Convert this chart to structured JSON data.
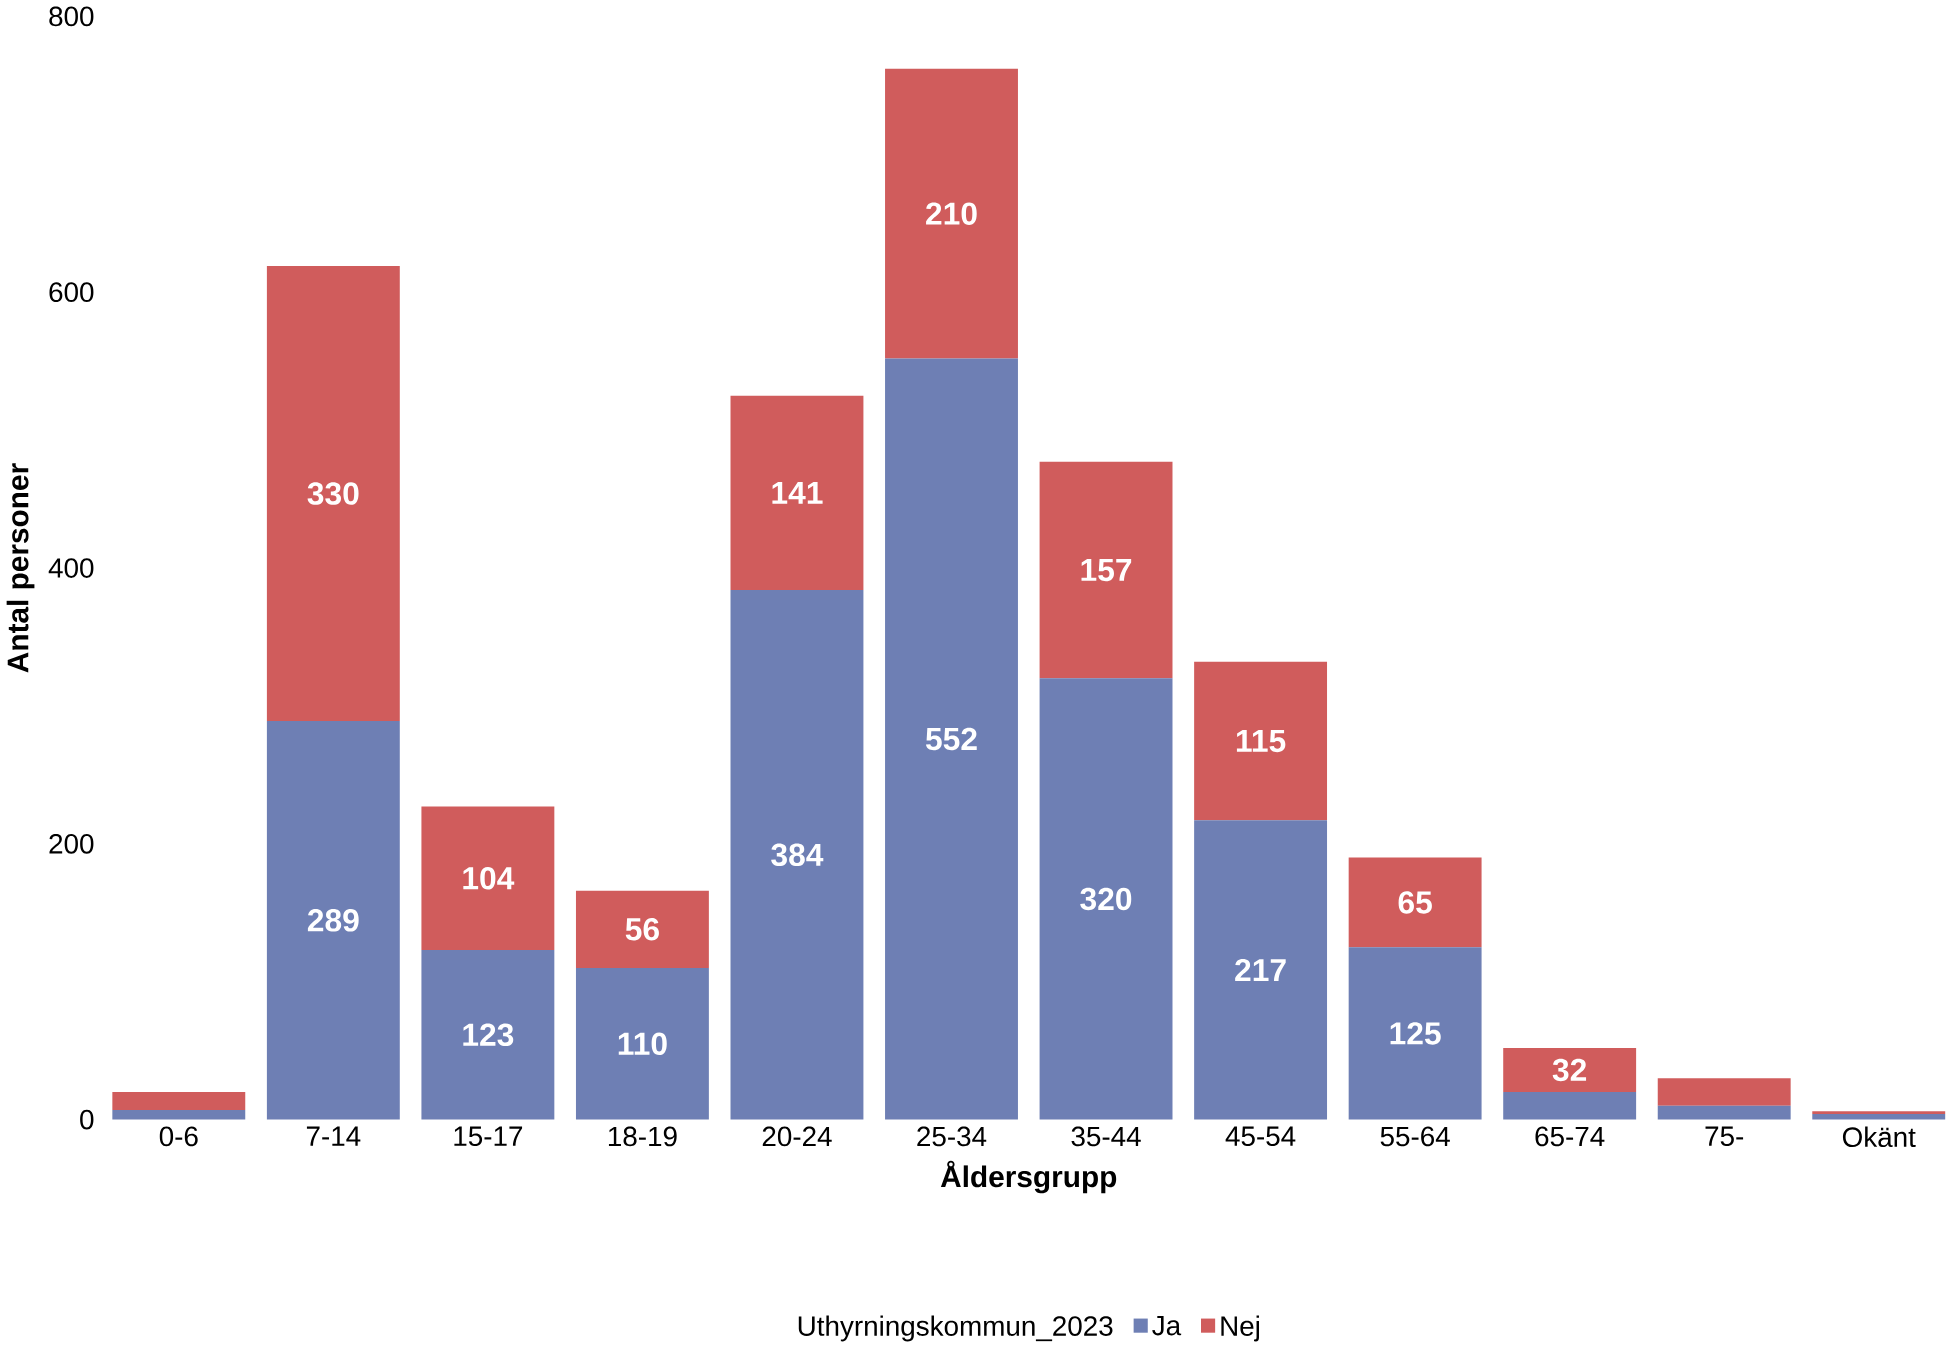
{
  "chart_data": {
    "type": "bar",
    "stacked": true,
    "xlabel": "Åldersgrupp",
    "ylabel": "Antal personer",
    "legend_title": "Uthyrningskommun_2023",
    "legend": "bottom",
    "categories": [
      "0-6",
      "7-14",
      "15-17",
      "18-19",
      "20-24",
      "25-34",
      "35-44",
      "45-54",
      "55-64",
      "65-74",
      "75-",
      "Okänt"
    ],
    "ylim": [
      0,
      800
    ],
    "yticks": [
      0,
      200,
      400,
      600,
      800
    ],
    "grid": false,
    "series": [
      {
        "name": "Ja",
        "color": "#6e7fb4",
        "values": [
          7,
          289,
          123,
          110,
          384,
          552,
          320,
          217,
          125,
          20,
          10,
          4
        ],
        "value_labels": [
          null,
          "289",
          "123",
          "110",
          "384",
          "552",
          "320",
          "217",
          "125",
          null,
          null,
          null
        ]
      },
      {
        "name": "Nej",
        "color": "#d05c5c",
        "values": [
          13,
          330,
          104,
          56,
          141,
          210,
          157,
          115,
          65,
          32,
          20,
          2
        ],
        "value_labels": [
          null,
          "330",
          "104",
          "56",
          "141",
          "210",
          "157",
          "115",
          "65",
          "32",
          null,
          null
        ]
      }
    ]
  }
}
